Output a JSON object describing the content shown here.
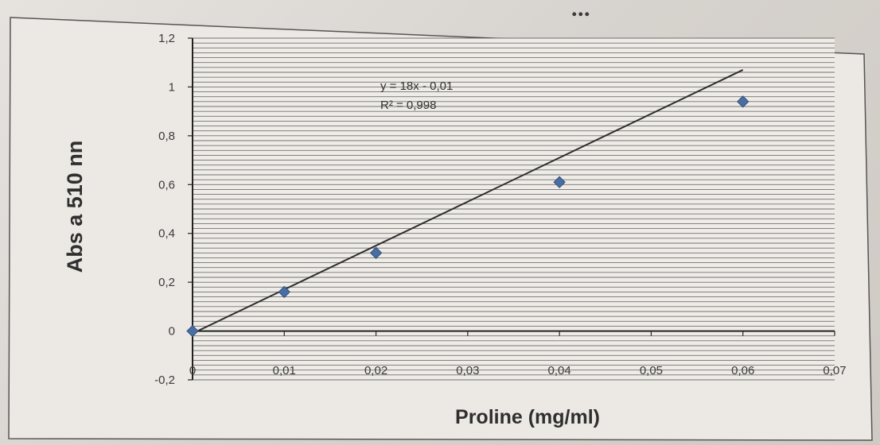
{
  "page": {
    "heading_fragment": "..."
  },
  "chart_data": {
    "type": "scatter",
    "x": [
      0,
      0.01,
      0.02,
      0.04,
      0.06
    ],
    "y": [
      0,
      0.16,
      0.32,
      0.61,
      0.94
    ],
    "xlabel": "Proline (mg/ml)",
    "ylabel": "Abs a 510 nn",
    "xlim": [
      0,
      0.07
    ],
    "ylim": [
      -0.2,
      1.2
    ],
    "xticks": [
      "0",
      "0,01",
      "0,02",
      "0,03",
      "0,04",
      "0,05",
      "0,06",
      "0,07"
    ],
    "yticks": [
      "-0,2",
      "0",
      "0,2",
      "0,4",
      "0,6",
      "0,8",
      "1",
      "1,2"
    ],
    "trendline": {
      "equation": "y = 18x - 0,01",
      "r2": "R² = 0,998",
      "slope": 18,
      "intercept": -0.01
    },
    "grid": true,
    "legend": "none",
    "colors": {
      "marker": "#4a6ea3",
      "line": "#2f2f2f",
      "grid": "#4a4a4a",
      "text": "#3a3a3a"
    }
  }
}
